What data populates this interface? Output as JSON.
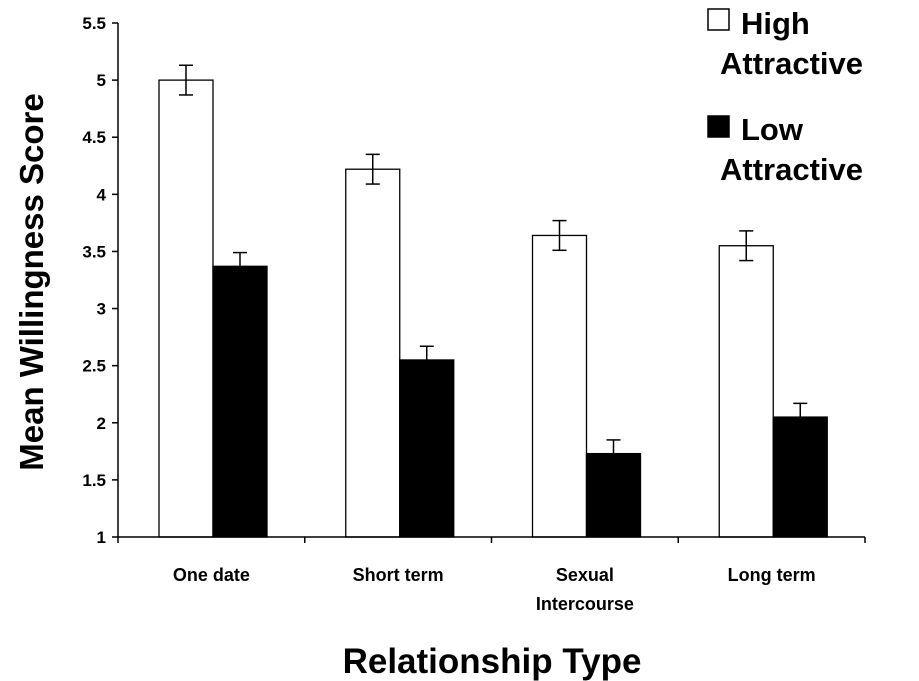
{
  "chart_data": {
    "type": "bar",
    "title": "",
    "xlabel": "Relationship Type",
    "ylabel": "Mean Willingness Score",
    "categories": [
      "One date",
      "Short term",
      "Sexual Intercourse",
      "Long term"
    ],
    "category_lines": [
      [
        "One date"
      ],
      [
        "Short term"
      ],
      [
        "Sexual",
        "Intercourse"
      ],
      [
        "Long term"
      ]
    ],
    "ylim": [
      1,
      5.5
    ],
    "yticks": [
      "1",
      "1.5",
      "2",
      "2.5",
      "3",
      "3.5",
      "4",
      "4.5",
      "5",
      "5.5"
    ],
    "grid": false,
    "legend_position": "top-right",
    "series": [
      {
        "name": "High Attractive",
        "name_lines": [
          "High",
          "Attractive"
        ],
        "color": "#ffffff",
        "values": [
          5.0,
          4.22,
          3.64,
          3.55
        ],
        "errors": [
          0.13,
          0.13,
          0.13,
          0.13
        ]
      },
      {
        "name": "Low Attractive",
        "name_lines": [
          "Low",
          "Attractive"
        ],
        "color": "#000000",
        "values": [
          3.37,
          2.55,
          1.73,
          2.05
        ],
        "errors": [
          0.12,
          0.12,
          0.12,
          0.12
        ]
      }
    ]
  }
}
